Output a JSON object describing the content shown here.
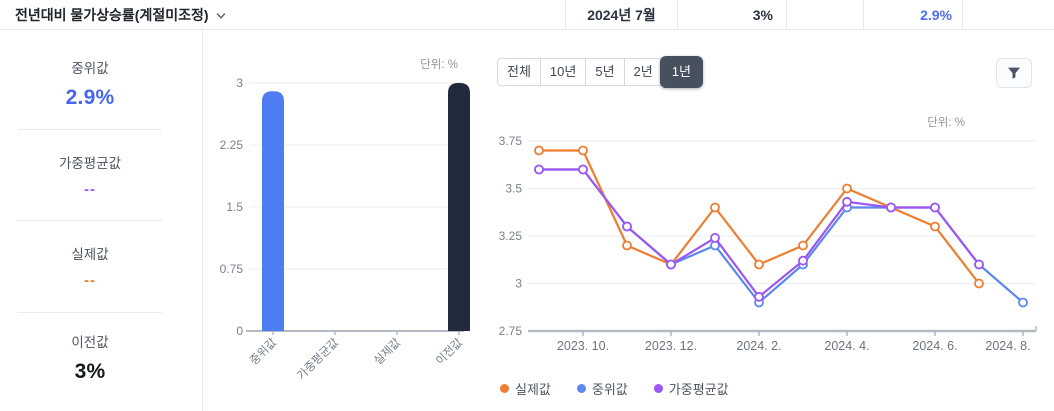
{
  "header": {
    "title": "전년대비 물가상승률(계절미조정)",
    "period": "2024년 7월",
    "previous_value": "3%",
    "median_value": "2.9%"
  },
  "stats": {
    "items": [
      {
        "label": "중위값",
        "value": "2.9%",
        "color": "#4766f0"
      },
      {
        "label": "가중평균값",
        "value": "--",
        "color": "#9c56f5"
      },
      {
        "label": "실제값",
        "value": "--",
        "color": "#ef7d30"
      },
      {
        "label": "이전값",
        "value": "3%",
        "color": "#15181d"
      }
    ]
  },
  "range_tabs": {
    "options": [
      "전체",
      "10년",
      "5년",
      "2년",
      "1년"
    ],
    "selected": "1년"
  },
  "filter_button": {
    "icon": "funnel-icon"
  },
  "chart_data": [
    {
      "type": "bar",
      "unit_label": "단위: %",
      "categories": [
        "중위값",
        "가중평균값",
        "실제값",
        "이전값"
      ],
      "values": [
        2.9,
        null,
        null,
        3
      ],
      "bar_colors": [
        "#4e7cf2",
        null,
        null,
        "#212b3c"
      ],
      "ylim": [
        0,
        3
      ],
      "yticks": [
        0,
        0.75,
        1.5,
        2.25,
        3
      ],
      "grid": true
    },
    {
      "type": "line",
      "unit_label": "단위: %",
      "x": [
        "2023. 9.",
        "2023. 10.",
        "2023. 11.",
        "2023. 12.",
        "2024. 1.",
        "2024. 2.",
        "2024. 3.",
        "2024. 4.",
        "2024. 5.",
        "2024. 6.",
        "2024. 7.",
        "2024. 8."
      ],
      "x_tick_labels": [
        "2023. 10.",
        "2023. 12.",
        "2024. 2.",
        "2024. 4.",
        "2024. 6.",
        "2024. 8."
      ],
      "series": [
        {
          "name": "실제값",
          "color": "#ef7d30",
          "values": [
            3.7,
            3.7,
            3.2,
            3.1,
            3.4,
            3.1,
            3.2,
            3.5,
            3.4,
            3.3,
            3.0,
            null
          ]
        },
        {
          "name": "중위값",
          "color": "#5b87f0",
          "values": [
            3.6,
            3.6,
            3.3,
            3.1,
            3.2,
            2.9,
            3.1,
            3.4,
            3.4,
            3.4,
            3.1,
            2.9
          ]
        },
        {
          "name": "가중평균값",
          "color": "#9c56f5",
          "values": [
            3.6,
            3.6,
            3.3,
            3.1,
            3.24,
            2.93,
            3.12,
            3.43,
            3.4,
            3.4,
            3.1,
            null
          ]
        }
      ],
      "ylim": [
        2.75,
        3.75
      ],
      "yticks": [
        2.75,
        3,
        3.25,
        3.5,
        3.75
      ],
      "grid": true,
      "legend_position": "bottom-left"
    }
  ]
}
